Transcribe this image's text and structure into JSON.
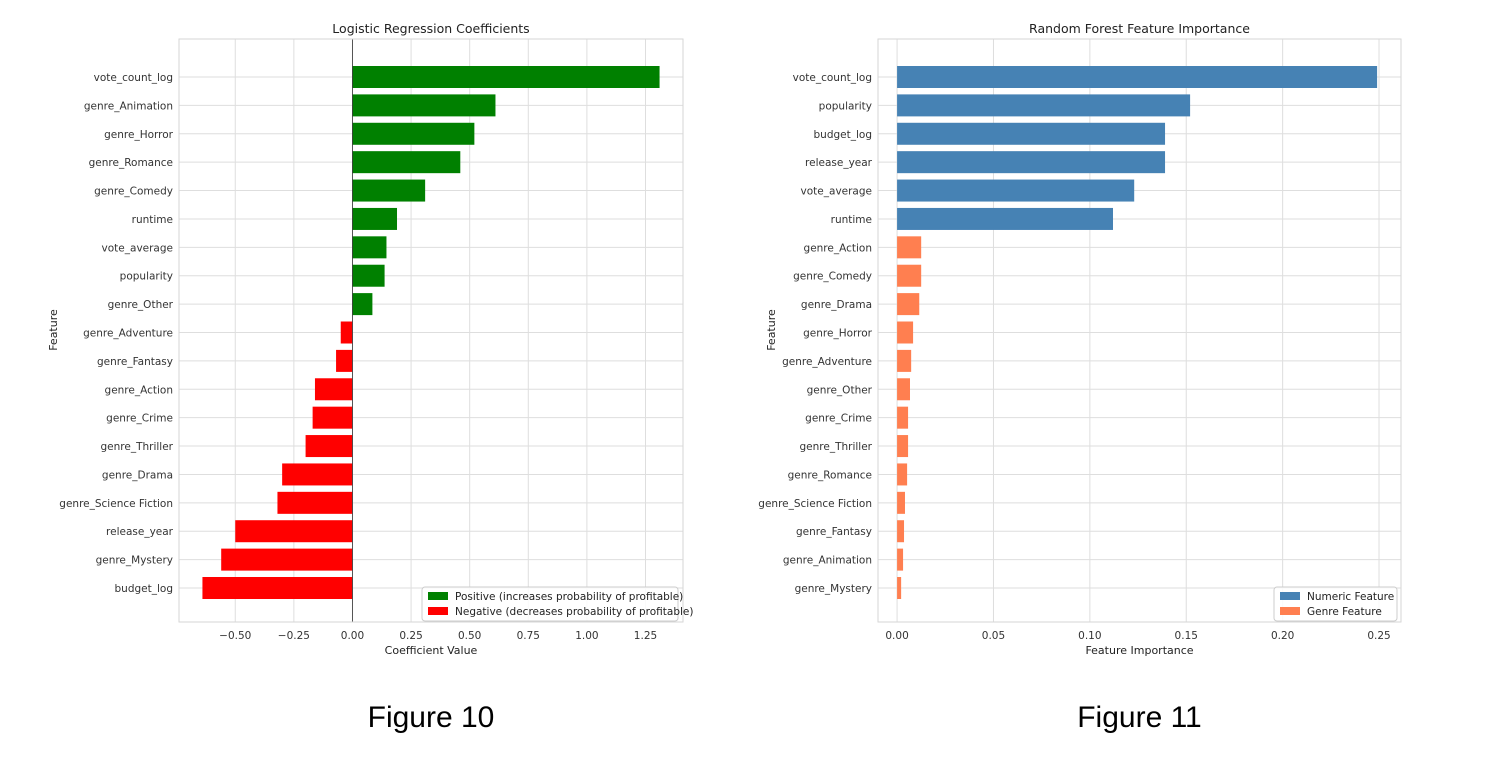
{
  "chart_data": [
    {
      "type": "bar",
      "orientation": "horizontal",
      "title": "Logistic Regression Coefficients",
      "xlabel": "Coefficient Value",
      "ylabel": "Feature",
      "caption": "Figure 10",
      "xlim": [
        -0.74,
        1.41
      ],
      "xticks": [
        -0.5,
        -0.25,
        0.0,
        0.25,
        0.5,
        0.75,
        1.0,
        1.25
      ],
      "xtick_labels": [
        "−0.50",
        "−0.25",
        "0.00",
        "0.25",
        "0.50",
        "0.75",
        "1.00",
        "1.25"
      ],
      "grid": true,
      "legend_placement": "lower-right",
      "legend": [
        {
          "label": "Positive (increases probability of profitable)",
          "color": "#008000"
        },
        {
          "label": "Negative (decreases probability of profitable)",
          "color": "#ff0000"
        }
      ],
      "categories": [
        "vote_count_log",
        "genre_Animation",
        "genre_Horror",
        "genre_Romance",
        "genre_Comedy",
        "runtime",
        "vote_average",
        "popularity",
        "genre_Other",
        "genre_Adventure",
        "genre_Fantasy",
        "genre_Action",
        "genre_Crime",
        "genre_Thriller",
        "genre_Drama",
        "genre_Science Fiction",
        "release_year",
        "genre_Mystery",
        "budget_log"
      ],
      "values": [
        1.31,
        0.61,
        0.52,
        0.46,
        0.31,
        0.19,
        0.145,
        0.137,
        0.085,
        -0.05,
        -0.07,
        -0.16,
        -0.17,
        -0.2,
        -0.3,
        -0.32,
        -0.5,
        -0.56,
        -0.64
      ]
    },
    {
      "type": "bar",
      "orientation": "horizontal",
      "title": "Random Forest Feature Importance",
      "xlabel": "Feature Importance",
      "ylabel": "Feature",
      "caption": "Figure 11",
      "xlim": [
        -0.0099,
        0.2614
      ],
      "xticks": [
        0.0,
        0.05,
        0.1,
        0.15,
        0.2,
        0.25
      ],
      "xtick_labels": [
        "0.00",
        "0.05",
        "0.10",
        "0.15",
        "0.20",
        "0.25"
      ],
      "grid": true,
      "legend_placement": "lower-right",
      "legend": [
        {
          "label": "Numeric Feature",
          "color": "#4682b4"
        },
        {
          "label": "Genre Feature",
          "color": "#ff7f50"
        }
      ],
      "categories": [
        "vote_count_log",
        "popularity",
        "budget_log",
        "release_year",
        "vote_average",
        "runtime",
        "genre_Action",
        "genre_Comedy",
        "genre_Drama",
        "genre_Horror",
        "genre_Adventure",
        "genre_Other",
        "genre_Crime",
        "genre_Thriller",
        "genre_Romance",
        "genre_Science Fiction",
        "genre_Fantasy",
        "genre_Animation",
        "genre_Mystery"
      ],
      "values": [
        0.249,
        0.152,
        0.139,
        0.139,
        0.123,
        0.112,
        0.0125,
        0.0125,
        0.0115,
        0.0083,
        0.0073,
        0.0067,
        0.0057,
        0.0057,
        0.0052,
        0.0041,
        0.0036,
        0.0031,
        0.0021
      ],
      "groups": [
        "Numeric Feature",
        "Numeric Feature",
        "Numeric Feature",
        "Numeric Feature",
        "Numeric Feature",
        "Numeric Feature",
        "Genre Feature",
        "Genre Feature",
        "Genre Feature",
        "Genre Feature",
        "Genre Feature",
        "Genre Feature",
        "Genre Feature",
        "Genre Feature",
        "Genre Feature",
        "Genre Feature",
        "Genre Feature",
        "Genre Feature",
        "Genre Feature"
      ]
    }
  ]
}
